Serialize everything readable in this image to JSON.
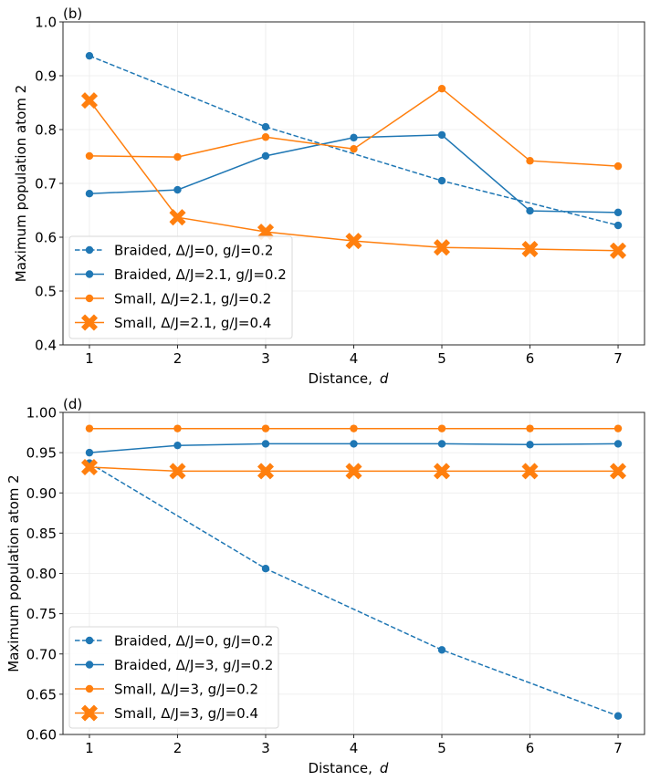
{
  "chart_data": [
    {
      "type": "line",
      "panel_label": "(b)",
      "title": "",
      "xlabel": "Distance,",
      "xlabel_var": "d",
      "ylabel": "Maximum population atom 2",
      "xlim": [
        0.7,
        7.3
      ],
      "ylim": [
        0.4,
        1.0
      ],
      "xticks": [
        1,
        2,
        3,
        4,
        5,
        6,
        7
      ],
      "yticks": [
        0.4,
        0.5,
        0.6,
        0.7,
        0.8,
        0.9,
        1.0
      ],
      "ytick_labels": [
        "0.4",
        "0.5",
        "0.6",
        "0.7",
        "0.8",
        "0.9",
        "1.0"
      ],
      "grid": true,
      "legend_position": "lower-left",
      "series": [
        {
          "name": "Braided, Δ/J=0, g/J=0.2",
          "color": "#1f77b4",
          "style": "dashed",
          "marker": "circle",
          "x": [
            1,
            3,
            5,
            7
          ],
          "values": [
            0.937,
            0.805,
            0.705,
            0.622
          ]
        },
        {
          "name": "Braided, Δ/J=2.1, g/J=0.2",
          "color": "#1f77b4",
          "style": "solid",
          "marker": "circle",
          "x": [
            1,
            2,
            3,
            4,
            5,
            6,
            7
          ],
          "values": [
            0.681,
            0.688,
            0.751,
            0.785,
            0.79,
            0.649,
            0.646
          ]
        },
        {
          "name": "Small, Δ/J=2.1, g/J=0.2",
          "color": "#ff7f0e",
          "style": "solid",
          "marker": "circle",
          "x": [
            1,
            2,
            3,
            4,
            5,
            6,
            7
          ],
          "values": [
            0.751,
            0.749,
            0.786,
            0.764,
            0.876,
            0.742,
            0.732
          ]
        },
        {
          "name": "Small, Δ/J=2.1, g/J=0.4",
          "color": "#ff7f0e",
          "style": "solid",
          "marker": "x",
          "x": [
            1,
            2,
            3,
            4,
            5,
            6,
            7
          ],
          "values": [
            0.854,
            0.637,
            0.61,
            0.593,
            0.581,
            0.578,
            0.575
          ]
        }
      ]
    },
    {
      "type": "line",
      "panel_label": "(d)",
      "title": "",
      "xlabel": "Distance,",
      "xlabel_var": "d",
      "ylabel": "Maximum population atom 2",
      "xlim": [
        0.7,
        7.3
      ],
      "ylim": [
        0.6,
        1.0
      ],
      "xticks": [
        1,
        2,
        3,
        4,
        5,
        6,
        7
      ],
      "yticks": [
        0.6,
        0.65,
        0.7,
        0.75,
        0.8,
        0.85,
        0.9,
        0.95,
        1.0
      ],
      "ytick_labels": [
        "0.60",
        "0.65",
        "0.70",
        "0.75",
        "0.80",
        "0.85",
        "0.90",
        "0.95",
        "1.00"
      ],
      "grid": true,
      "legend_position": "lower-left",
      "series": [
        {
          "name": "Braided, Δ/J=0, g/J=0.2",
          "color": "#1f77b4",
          "style": "dashed",
          "marker": "circle",
          "x": [
            1,
            3,
            5,
            7
          ],
          "values": [
            0.937,
            0.806,
            0.705,
            0.623
          ]
        },
        {
          "name": "Braided, Δ/J=3, g/J=0.2",
          "color": "#1f77b4",
          "style": "solid",
          "marker": "circle",
          "x": [
            1,
            2,
            3,
            4,
            5,
            6,
            7
          ],
          "values": [
            0.95,
            0.959,
            0.961,
            0.961,
            0.961,
            0.96,
            0.961
          ]
        },
        {
          "name": "Small, Δ/J=3, g/J=0.2",
          "color": "#ff7f0e",
          "style": "solid",
          "marker": "circle",
          "x": [
            1,
            2,
            3,
            4,
            5,
            6,
            7
          ],
          "values": [
            0.98,
            0.98,
            0.98,
            0.98,
            0.98,
            0.98,
            0.98
          ]
        },
        {
          "name": "Small, Δ/J=3, g/J=0.4",
          "color": "#ff7f0e",
          "style": "solid",
          "marker": "x",
          "x": [
            1,
            2,
            3,
            4,
            5,
            6,
            7
          ],
          "values": [
            0.932,
            0.927,
            0.927,
            0.927,
            0.927,
            0.927,
            0.927
          ]
        }
      ]
    }
  ]
}
